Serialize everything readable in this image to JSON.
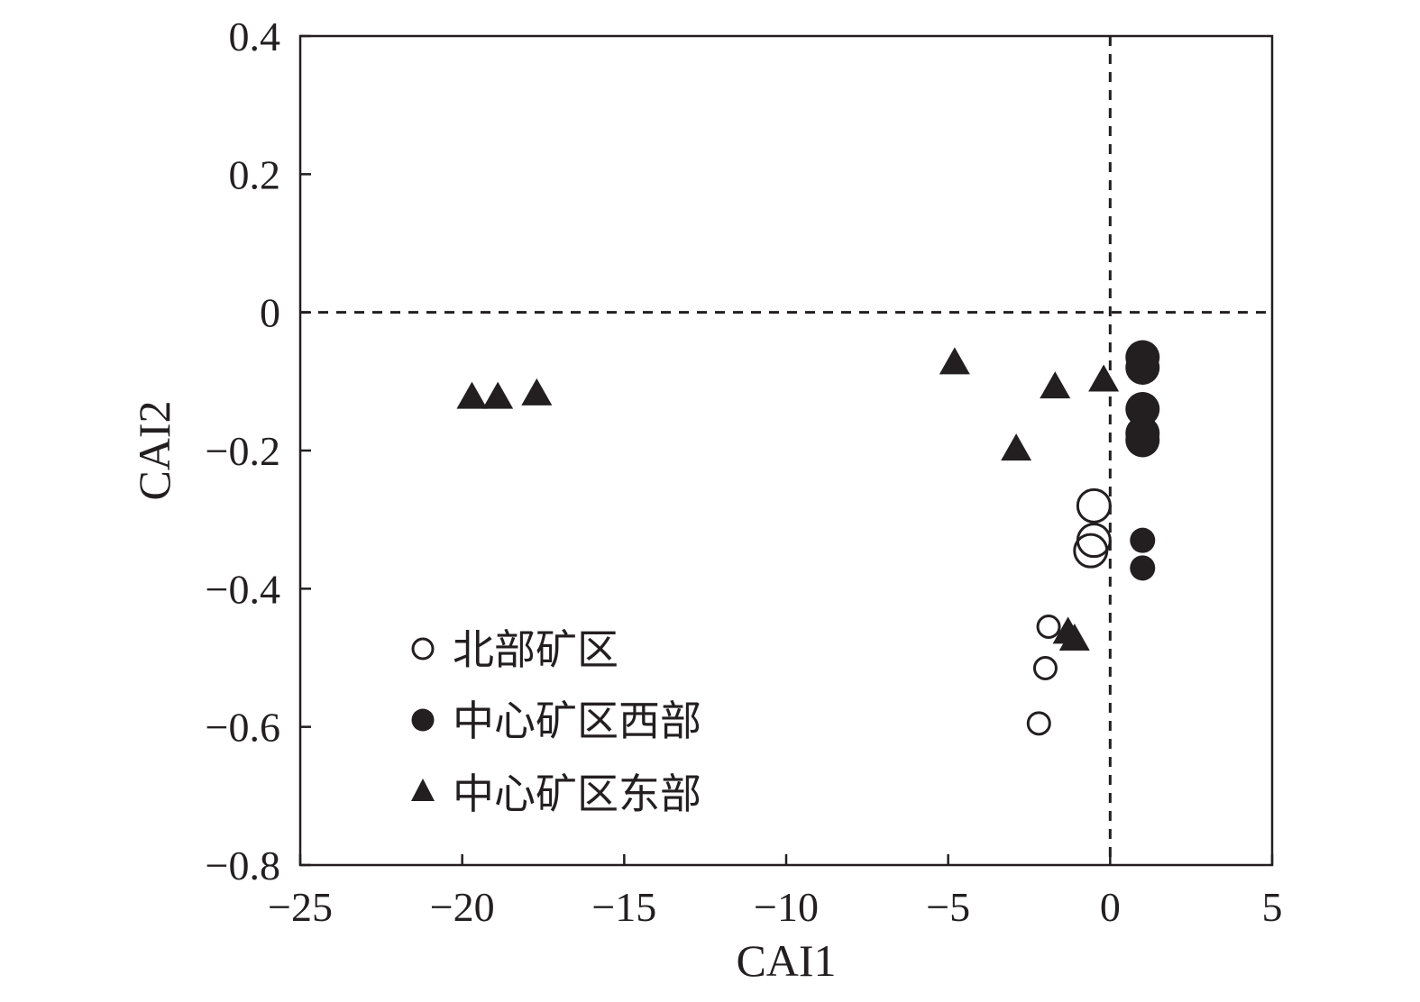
{
  "chart_data": {
    "type": "scatter",
    "xlabel": "CAI1",
    "ylabel": "CAI2",
    "xlim": [
      -25,
      5
    ],
    "ylim": [
      -0.8,
      0.4
    ],
    "xticks": [
      -25,
      -20,
      -15,
      -10,
      -5,
      0,
      5
    ],
    "yticks": [
      0.4,
      0.2,
      0,
      -0.2,
      -0.4,
      -0.6,
      -0.8
    ],
    "xtick_labels": [
      "−25",
      "−20",
      "−15",
      "−10",
      "−5",
      "0",
      "5"
    ],
    "ytick_labels": [
      "0.4",
      "0.2",
      "0",
      "−0.2",
      "−0.4",
      "−0.6",
      "−0.8"
    ],
    "reference_lines": {
      "x": 0,
      "y": 0,
      "style": "dashed"
    },
    "legend_position": "lower-left",
    "series": [
      {
        "name": "北部矿区",
        "marker": "open-circle",
        "points": [
          {
            "x": -0.5,
            "y": -0.28,
            "size": "large"
          },
          {
            "x": -0.5,
            "y": -0.33,
            "size": "large"
          },
          {
            "x": -0.6,
            "y": -0.345,
            "size": "large"
          },
          {
            "x": -1.9,
            "y": -0.455,
            "size": "small"
          },
          {
            "x": -2.0,
            "y": -0.515,
            "size": "small"
          },
          {
            "x": -2.2,
            "y": -0.595,
            "size": "small"
          }
        ]
      },
      {
        "name": "中心矿区西部",
        "marker": "filled-circle",
        "points": [
          {
            "x": 1.0,
            "y": -0.065,
            "size": "large"
          },
          {
            "x": 1.0,
            "y": -0.08,
            "size": "large"
          },
          {
            "x": 1.0,
            "y": -0.14,
            "size": "large"
          },
          {
            "x": 1.0,
            "y": -0.175,
            "size": "large"
          },
          {
            "x": 1.0,
            "y": -0.185,
            "size": "large"
          },
          {
            "x": 1.0,
            "y": -0.33,
            "size": "small"
          },
          {
            "x": 1.0,
            "y": -0.37,
            "size": "small"
          }
        ]
      },
      {
        "name": "中心矿区东部",
        "marker": "filled-triangle",
        "points": [
          {
            "x": -19.7,
            "y": -0.12
          },
          {
            "x": -18.9,
            "y": -0.12
          },
          {
            "x": -17.7,
            "y": -0.115
          },
          {
            "x": -4.8,
            "y": -0.07
          },
          {
            "x": -1.7,
            "y": -0.105
          },
          {
            "x": -0.2,
            "y": -0.095
          },
          {
            "x": -2.9,
            "y": -0.195
          },
          {
            "x": -1.3,
            "y": -0.46
          },
          {
            "x": -1.1,
            "y": -0.47
          }
        ]
      }
    ]
  },
  "colors": {
    "ink": "#231f20",
    "background": "#ffffff"
  }
}
